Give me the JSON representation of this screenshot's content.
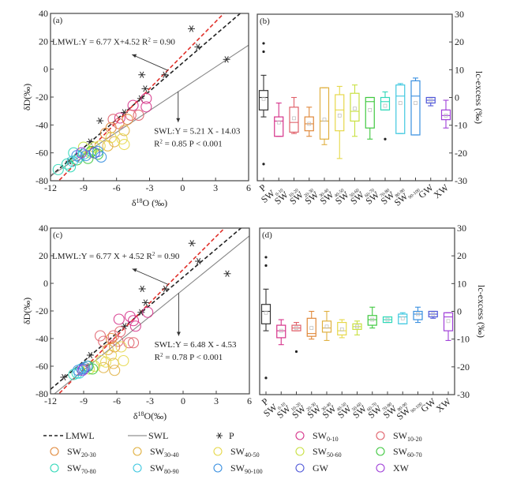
{
  "chart_data": [
    {
      "panel": "a",
      "type": "scatter",
      "label": "(a)",
      "xlabel": "δ18O (‰)",
      "xlabel_main": "δ",
      "xlabel_sup": "18",
      "xlabel_rest": "O (‰)",
      "ylabel": "δD(‰)",
      "xlim": [
        -12,
        6
      ],
      "ylim": [
        -80,
        40
      ],
      "xticks": [
        "-12",
        "-9",
        "-6",
        "-3",
        "0",
        "3",
        "6"
      ],
      "yticks": [
        "40",
        "20",
        "0",
        "-20",
        "-40",
        "-60",
        "-80"
      ],
      "lines": [
        {
          "name": "LMWL",
          "slope": 6.77,
          "intercept": 4.52,
          "style": "dashed",
          "color": "#222222"
        },
        {
          "name": "GMWL",
          "slope": 8,
          "intercept": 10,
          "style": "dashed",
          "color": "#e0302a"
        },
        {
          "name": "SWL",
          "slope": 5.21,
          "intercept": -14.03,
          "style": "solid",
          "color": "#888888"
        }
      ],
      "annotations": {
        "lmwl": "LMWL:Y = 6.77 X+4.52  R",
        "lmwl_r2": "2",
        "lmwl_tail": " = 0.90",
        "swl1": "SWL:Y = 5.21 X - 14.03",
        "swl2_pre": "R",
        "swl2_sup": "2",
        "swl2": " = 0.85    P < 0.001"
      },
      "points": {
        "P": [
          [
            0.8,
            29
          ],
          [
            1.4,
            16
          ],
          [
            4,
            7
          ],
          [
            -3.7,
            -4
          ],
          [
            -1.6,
            -4
          ],
          [
            -3.4,
            -14
          ],
          [
            -3.8,
            -21
          ],
          [
            -7.5,
            -37
          ],
          [
            -5.3,
            -31
          ],
          [
            -8.4,
            -52
          ],
          [
            -10.3,
            -66
          ]
        ],
        "SW0-10": [
          [
            -3.3,
            -21
          ],
          [
            -3.3,
            -27
          ],
          [
            -4.5,
            -26
          ],
          [
            -5.7,
            -35
          ]
        ],
        "SW10-20": [
          [
            -4.0,
            -33
          ],
          [
            -4.7,
            -33
          ],
          [
            -5.8,
            -39
          ],
          [
            -6.3,
            -36
          ]
        ],
        "SW20-30": [
          [
            -5.0,
            -36
          ],
          [
            -6.5,
            -42
          ],
          [
            -7.0,
            -46
          ]
        ],
        "SW30-40": [
          [
            -5.3,
            -44
          ],
          [
            -6.2,
            -52
          ],
          [
            -6.8,
            -55
          ]
        ],
        "SW40-50": [
          [
            -5.5,
            -50
          ],
          [
            -5.3,
            -54
          ],
          [
            -6.5,
            -49
          ],
          [
            -7.5,
            -55
          ]
        ],
        "SW50-60": [
          [
            -8.0,
            -56
          ],
          [
            -9.0,
            -56
          ],
          [
            -8.4,
            -60
          ]
        ],
        "SW60-70": [
          [
            -7.7,
            -61
          ],
          [
            -8.3,
            -59
          ],
          [
            -8.6,
            -64
          ],
          [
            -9.6,
            -65
          ]
        ],
        "SW70-80": [
          [
            -9.9,
            -60
          ],
          [
            -10.5,
            -68
          ],
          [
            -11.3,
            -72
          ],
          [
            -10.2,
            -70
          ]
        ],
        "SW80-90": [
          [
            -9.0,
            -61
          ],
          [
            -9.4,
            -63
          ],
          [
            -10.0,
            -66
          ]
        ],
        "SW90-100": [
          [
            -7.4,
            -63
          ],
          [
            -7.7,
            -59
          ],
          [
            -8.8,
            -62
          ],
          [
            -9.6,
            -62
          ]
        ],
        "GW": [
          [
            -8.0,
            -60
          ]
        ],
        "XW": [
          [
            -9.2,
            -60
          ]
        ]
      }
    },
    {
      "panel": "b",
      "type": "box",
      "label": "(b)",
      "ylabel": "lc-excess (‰)",
      "ylim": [
        -30,
        30
      ],
      "yticks": [
        "30",
        "20",
        "10",
        "0",
        "-10",
        "-20",
        "-30"
      ],
      "categories": [
        "P",
        "SW0-10",
        "SW10-20",
        "SW20-30",
        "SW30-40",
        "SW40-50",
        "SW50-60",
        "SW60-70",
        "SW70-80",
        "SW80-90",
        "SW90-100",
        "GW",
        "XW"
      ],
      "boxes": [
        {
          "min": -7,
          "q1": -4.5,
          "median": 0,
          "q3": 2.5,
          "max": 8,
          "mean": -0.5,
          "outliers": [
            19.5,
            16.5,
            -24
          ]
        },
        {
          "min": -14,
          "q1": -14,
          "median": -8.5,
          "q3": -7,
          "max": -2,
          "mean": -9,
          "outliers": []
        },
        {
          "min": -13,
          "q1": -12.5,
          "median": -9,
          "q3": -3.5,
          "max": 0,
          "mean": -7.5,
          "outliers": []
        },
        {
          "min": -14,
          "q1": -12,
          "median": -9.5,
          "q3": -7,
          "max": -3.5,
          "mean": -9.5,
          "outliers": []
        },
        {
          "min": -17,
          "q1": -15,
          "median": -8.5,
          "q3": 3.5,
          "max": 3.5,
          "mean": -8,
          "outliers": []
        },
        {
          "min": -22,
          "q1": -12,
          "median": -4.5,
          "q3": 1,
          "max": 4,
          "mean": -6.5,
          "outliers": []
        },
        {
          "min": -14,
          "q1": -8.5,
          "median": -5,
          "q3": 1.5,
          "max": 4.5,
          "mean": -4,
          "outliers": []
        },
        {
          "min": -15,
          "q1": -11,
          "median": -1.5,
          "q3": 0,
          "max": 0,
          "mean": -4.5,
          "outliers": []
        },
        {
          "min": -4.5,
          "q1": -4.5,
          "median": -1.5,
          "q3": 0,
          "max": 2,
          "mean": -3,
          "outliers": [
            -15
          ]
        },
        {
          "min": -13,
          "q1": -13,
          "median": 0.5,
          "q3": 4.5,
          "max": 5,
          "mean": -2,
          "outliers": []
        },
        {
          "min": -13.5,
          "q1": -13.5,
          "median": 0.5,
          "q3": 6,
          "max": 7,
          "mean": -2,
          "outliers": []
        },
        {
          "min": -3,
          "q1": -2,
          "median": -1,
          "q3": 0,
          "max": 0,
          "mean": -1,
          "outliers": []
        },
        {
          "min": -11,
          "q1": -8,
          "median": -6.5,
          "q3": -4.5,
          "max": -1,
          "mean": -6.5,
          "outliers": []
        }
      ]
    },
    {
      "panel": "c",
      "type": "scatter",
      "label": "(c)",
      "xlabel": "δ18O(‰)",
      "xlabel_main": "δ",
      "xlabel_sup": "18",
      "xlabel_rest": "O(‰)",
      "ylabel": "δD(‰)",
      "xlim": [
        -12,
        6
      ],
      "ylim": [
        -80,
        40
      ],
      "xticks": [
        "-12",
        "-9",
        "-6",
        "-3",
        "0",
        "3",
        "6"
      ],
      "yticks": [
        "40",
        "20",
        "0",
        "-20",
        "-40",
        "-60",
        "-80"
      ],
      "lines": [
        {
          "name": "LMWL",
          "slope": 6.77,
          "intercept": 4.52,
          "style": "dashed",
          "color": "#222222"
        },
        {
          "name": "GMWL",
          "slope": 8,
          "intercept": 10,
          "style": "dashed",
          "color": "#e0302a"
        },
        {
          "name": "SWL",
          "slope": 6.48,
          "intercept": -4.53,
          "style": "solid",
          "color": "#888888"
        }
      ],
      "annotations": {
        "lmwl": "LMWL:Y = 6.77 X + 4.52  R",
        "lmwl_r2": "2",
        "lmwl_tail": " = 0.90",
        "swl1": "SWL:Y = 6.48 X - 4.53",
        "swl2_pre": "R",
        "swl2_sup": "2",
        "swl2": " = 0.78    P < 0.001"
      },
      "points": {
        "P": [
          [
            0.8,
            29
          ],
          [
            1.4,
            16
          ],
          [
            4,
            7
          ],
          [
            -3.7,
            -4
          ],
          [
            -1.6,
            -4
          ],
          [
            -3.4,
            -14
          ],
          [
            -3.8,
            -21
          ],
          [
            -5.3,
            -31
          ],
          [
            -8.4,
            -52
          ],
          [
            -10.8,
            -68
          ]
        ],
        "SW0-10": [
          [
            -3.2,
            -21
          ],
          [
            -4.8,
            -24
          ],
          [
            -5.8,
            -26
          ],
          [
            -4.5,
            -27
          ],
          [
            -4.3,
            -31
          ]
        ],
        "SW10-20": [
          [
            -7.5,
            -38
          ],
          [
            -7.2,
            -42
          ],
          [
            -6.3,
            -38
          ],
          [
            -5.7,
            -35
          ],
          [
            -4.5,
            -43
          ],
          [
            -4.9,
            -43
          ],
          [
            -5.9,
            -42
          ]
        ],
        "SW20-30": [
          [
            -6.5,
            -40
          ],
          [
            -6.2,
            -46
          ]
        ],
        "SW30-40": [
          [
            -6.8,
            -48
          ],
          [
            -6.3,
            -58
          ],
          [
            -6.2,
            -63
          ],
          [
            -7.2,
            -61
          ]
        ],
        "SW40-50": [
          [
            -7.4,
            -56
          ],
          [
            -6.5,
            -52
          ],
          [
            -5.6,
            -46
          ],
          [
            -5.4,
            -56
          ],
          [
            -7.0,
            -57
          ]
        ],
        "SW50-60": [
          [
            -8.0,
            -60
          ],
          [
            -8.5,
            -62
          ]
        ],
        "SW60-70": [
          [
            -8.6,
            -60
          ],
          [
            -8.2,
            -62
          ]
        ],
        "SW70-80": [
          [
            -9.6,
            -65
          ],
          [
            -9.9,
            -66
          ]
        ],
        "SW80-90": [
          [
            -9.2,
            -62
          ],
          [
            -9.4,
            -65
          ]
        ],
        "SW90-100": [
          [
            -8.9,
            -61
          ],
          [
            -9.5,
            -63
          ],
          [
            -8.7,
            -60
          ]
        ],
        "GW": [
          [
            -9.0,
            -62
          ]
        ],
        "XW": [
          [
            -9.1,
            -63
          ]
        ]
      }
    },
    {
      "panel": "d",
      "type": "box",
      "label": "(d)",
      "ylabel": "lc-excess (‰)",
      "ylim": [
        -30,
        30
      ],
      "yticks": [
        "30",
        "20",
        "10",
        "0",
        "-10",
        "-20",
        "-30"
      ],
      "categories": [
        "P",
        "SW0-10",
        "SW10-20",
        "SW20-30",
        "SW30-40",
        "SW40-50",
        "SW50-60",
        "SW60-70",
        "SW70-80",
        "SW80-90",
        "SW90-100",
        "GW",
        "XW"
      ],
      "boxes": [
        {
          "min": -7,
          "q1": -4.5,
          "median": 0,
          "q3": 2.5,
          "max": 8,
          "mean": -0.5,
          "outliers": [
            19.5,
            16.5,
            -24
          ]
        },
        {
          "min": -12,
          "q1": -9.5,
          "median": -7,
          "q3": -5,
          "max": -3,
          "mean": -7,
          "outliers": []
        },
        {
          "min": -7,
          "q1": -7,
          "median": -6,
          "q3": -5,
          "max": -4,
          "mean": -6,
          "outliers": [
            -14.5
          ]
        },
        {
          "min": -10,
          "q1": -9,
          "median": -8,
          "q3": -2.5,
          "max": 0,
          "mean": -6,
          "outliers": []
        },
        {
          "min": -10.5,
          "q1": -7.5,
          "median": -6,
          "q3": -3.5,
          "max": 0,
          "mean": -5.5,
          "outliers": []
        },
        {
          "min": -9.5,
          "q1": -8.5,
          "median": -7,
          "q3": -4,
          "max": -3,
          "mean": -6.5,
          "outliers": []
        },
        {
          "min": -8.5,
          "q1": -6.5,
          "median": -5.5,
          "q3": -4.5,
          "max": -3.5,
          "mean": -5.5,
          "outliers": []
        },
        {
          "min": -6,
          "q1": -5,
          "median": -3,
          "q3": -1.5,
          "max": 1.5,
          "mean": -3,
          "outliers": []
        },
        {
          "min": -4,
          "q1": -4,
          "median": -3,
          "q3": -2,
          "max": -2,
          "mean": -3,
          "outliers": []
        },
        {
          "min": -4.5,
          "q1": -4.5,
          "median": -2,
          "q3": -1,
          "max": -0.5,
          "mean": -2.5,
          "outliers": []
        },
        {
          "min": -4,
          "q1": -3,
          "median": -1,
          "q3": 0,
          "max": 1.5,
          "mean": -1,
          "outliers": []
        },
        {
          "min": -2.5,
          "q1": -2,
          "median": -1,
          "q3": 0,
          "max": 0,
          "mean": -1,
          "outliers": []
        },
        {
          "min": -10.5,
          "q1": -7,
          "median": -2,
          "q3": -0.5,
          "max": -0.5,
          "mean": -3.5,
          "outliers": []
        }
      ]
    }
  ],
  "series_colors": {
    "P": "#333333",
    "SW0-10": "#d6338a",
    "SW10-20": "#e0606a",
    "SW20-30": "#e0883a",
    "SW30-40": "#e0b040",
    "SW40-50": "#e6d84a",
    "SW50-60": "#c8e040",
    "SW60-70": "#40c840",
    "SW70-80": "#30d8b8",
    "SW80-90": "#40c8e0",
    "SW90-100": "#3a90e0",
    "GW": "#5058d8",
    "XW": "#a040d8"
  },
  "box_x_labels": [
    {
      "main": "P",
      "sub": ""
    },
    {
      "main": "SW",
      "sub": "0-10"
    },
    {
      "main": "SW",
      "sub": "10-20"
    },
    {
      "main": "SW",
      "sub": "20-30"
    },
    {
      "main": "SW",
      "sub": "30-40"
    },
    {
      "main": "SW",
      "sub": "40-50"
    },
    {
      "main": "SW",
      "sub": "50-60"
    },
    {
      "main": "SW",
      "sub": "60-70"
    },
    {
      "main": "SW",
      "sub": "70-80"
    },
    {
      "main": "SW",
      "sub": "80-90"
    },
    {
      "main": "SW",
      "sub": "90-100"
    },
    {
      "main": "GW",
      "sub": ""
    },
    {
      "main": "XW",
      "sub": ""
    }
  ],
  "legend": {
    "items": [
      {
        "key": "LMWL",
        "main": "LMWL",
        "sub": "",
        "marker": "dashed-line"
      },
      {
        "key": "SWL",
        "main": "SWL",
        "sub": "",
        "marker": "solid-line"
      },
      {
        "key": "P",
        "main": "P",
        "sub": "",
        "marker": "asterisk"
      },
      {
        "key": "SW0-10",
        "main": "SW",
        "sub": "0-10",
        "marker": "circle"
      },
      {
        "key": "SW10-20",
        "main": "SW",
        "sub": "10-20",
        "marker": "circle"
      },
      {
        "key": "SW20-30",
        "main": "SW",
        "sub": "20-30",
        "marker": "circle"
      },
      {
        "key": "SW30-40",
        "main": "SW",
        "sub": "30-40",
        "marker": "circle"
      },
      {
        "key": "SW40-50",
        "main": "SW",
        "sub": "40-50",
        "marker": "circle"
      },
      {
        "key": "SW50-60",
        "main": "SW",
        "sub": "50-60",
        "marker": "circle"
      },
      {
        "key": "SW60-70",
        "main": "SW",
        "sub": "60-70",
        "marker": "circle"
      },
      {
        "key": "SW70-80",
        "main": "SW",
        "sub": "70-80",
        "marker": "circle"
      },
      {
        "key": "SW80-90",
        "main": "SW",
        "sub": "80-90",
        "marker": "circle"
      },
      {
        "key": "SW90-100",
        "main": "SW",
        "sub": "90-100",
        "marker": "circle"
      },
      {
        "key": "GW",
        "main": "GW",
        "sub": "",
        "marker": "circle"
      },
      {
        "key": "XW",
        "main": "XW",
        "sub": "",
        "marker": "circle"
      }
    ]
  }
}
